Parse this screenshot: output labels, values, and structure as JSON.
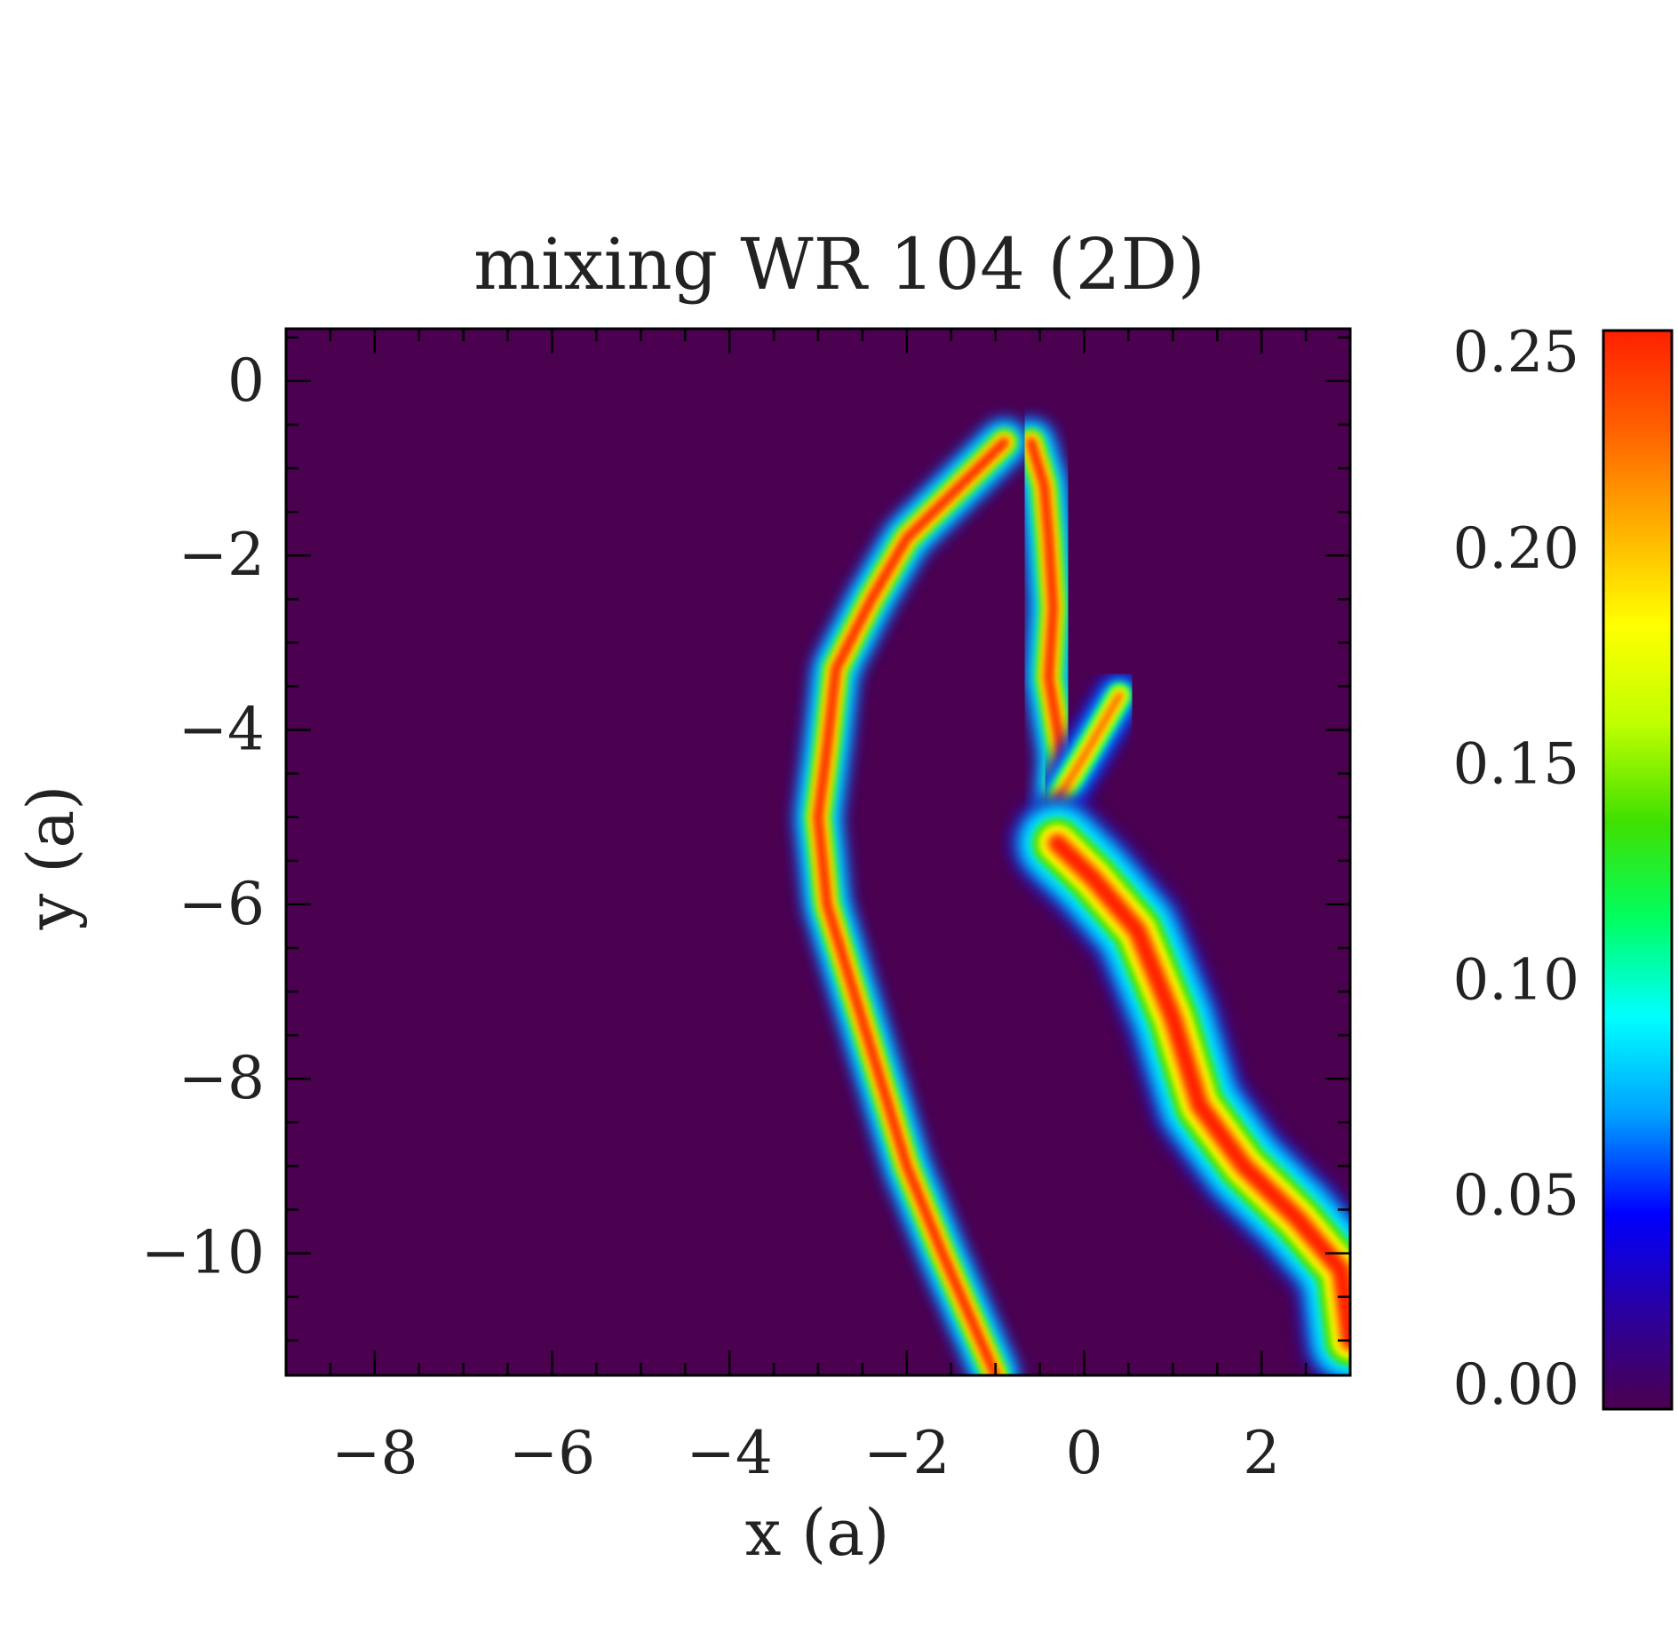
{
  "chart_data": {
    "type": "heatmap",
    "title": "mixing WR 104 (2D)",
    "xlabel": "x (a)",
    "ylabel": "y (a)",
    "xlim": [
      -9,
      3
    ],
    "ylim": [
      -11.4,
      0.6
    ],
    "x_ticks": [
      -8,
      -6,
      -4,
      -2,
      0,
      2
    ],
    "y_ticks": [
      0,
      -2,
      -4,
      -6,
      -8,
      -10
    ],
    "x_tick_labels": [
      "−8",
      "−6",
      "−4",
      "−2",
      "0",
      "2"
    ],
    "y_tick_labels": [
      "0",
      "−2",
      "−4",
      "−6",
      "−8",
      "−10"
    ],
    "colorbar": {
      "range": [
        0.0,
        0.25
      ],
      "ticks": [
        0.0,
        0.05,
        0.1,
        0.15,
        0.2,
        0.25
      ],
      "tick_labels": [
        "0.00",
        "0.05",
        "0.10",
        "0.15",
        "0.20",
        "0.25"
      ],
      "colormap": [
        "#4b0050",
        "#2a00a0",
        "#0000ff",
        "#00a0ff",
        "#00ffff",
        "#00ff60",
        "#40e000",
        "#c0ff00",
        "#ffff00",
        "#ffb000",
        "#ff6000",
        "#ff2000"
      ]
    },
    "background_color": "#4b0050",
    "features": [
      {
        "name": "left-arc",
        "peak_value": 0.24,
        "path": [
          [
            -0.9,
            -0.7
          ],
          [
            -1.4,
            -1.2
          ],
          [
            -2.0,
            -1.8
          ],
          [
            -2.4,
            -2.5
          ],
          [
            -2.8,
            -3.3
          ],
          [
            -2.9,
            -4.2
          ],
          [
            -3.0,
            -5.0
          ],
          [
            -2.9,
            -6.0
          ],
          [
            -2.6,
            -7.0
          ],
          [
            -2.3,
            -8.0
          ],
          [
            -2.0,
            -9.0
          ],
          [
            -1.6,
            -10.0
          ],
          [
            -1.0,
            -11.4
          ]
        ]
      },
      {
        "name": "inner-filament",
        "peak_value": 0.24,
        "path": [
          [
            -0.6,
            -0.7
          ],
          [
            -0.45,
            -1.2
          ],
          [
            -0.4,
            -1.8
          ],
          [
            -0.35,
            -2.6
          ],
          [
            -0.4,
            -3.4
          ],
          [
            -0.25,
            -4.3
          ],
          [
            -0.3,
            -4.9
          ]
        ]
      },
      {
        "name": "filament-branch",
        "peak_value": 0.22,
        "path": [
          [
            -0.3,
            -4.8
          ],
          [
            0.0,
            -4.3
          ],
          [
            0.4,
            -3.6
          ]
        ]
      },
      {
        "name": "right-tail",
        "peak_value": 0.25,
        "path": [
          [
            -0.3,
            -5.3
          ],
          [
            0.1,
            -5.7
          ],
          [
            0.6,
            -6.3
          ],
          [
            1.0,
            -7.3
          ],
          [
            1.3,
            -8.3
          ],
          [
            1.8,
            -9.0
          ],
          [
            2.4,
            -9.6
          ],
          [
            2.9,
            -10.2
          ],
          [
            3.0,
            -11.0
          ]
        ]
      }
    ]
  }
}
